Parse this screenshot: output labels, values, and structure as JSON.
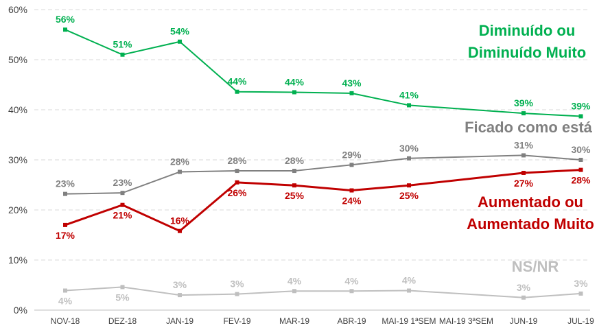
{
  "chart_data": {
    "type": "line",
    "categories": [
      "NOV-18",
      "DEZ-18",
      "JAN-19",
      "FEV-19",
      "MAR-19",
      "ABR-19",
      "MAI-19 1ªSEM",
      "MAI-19 3ªSEM",
      "JUN-19",
      "JUL-19"
    ],
    "ylim": [
      0,
      60
    ],
    "y_ticks": [
      "0%",
      "10%",
      "20%",
      "30%",
      "40%",
      "50%",
      "60%"
    ],
    "grid": true,
    "series": [
      {
        "key": "diminuido",
        "name": "Diminuído ou Diminuído Muito",
        "label_lines": [
          "Diminuído ou",
          "Diminuído Muito"
        ],
        "color": "#00b050",
        "values": [
          56,
          51,
          53.6,
          43.6,
          43.5,
          43.3,
          40.9,
          null,
          39.3,
          38.7
        ],
        "labels": [
          "56%",
          "51%",
          "54%",
          "44%",
          "44%",
          "43%",
          "41%",
          null,
          "39%",
          "39%"
        ]
      },
      {
        "key": "ficado",
        "name": "Ficado como está",
        "label_lines": [
          "Ficado como está"
        ],
        "color": "#808080",
        "values": [
          23.2,
          23.4,
          27.6,
          27.8,
          27.8,
          29,
          30.3,
          null,
          30.9,
          30
        ],
        "labels": [
          "23%",
          "23%",
          "28%",
          "28%",
          "28%",
          "29%",
          "30%",
          null,
          "31%",
          "30%"
        ]
      },
      {
        "key": "aumentado",
        "name": "Aumentado ou Aumentado Muito",
        "label_lines": [
          "Aumentado ou",
          "Aumentado Muito"
        ],
        "color": "#c00000",
        "values": [
          17,
          21,
          15.8,
          25.5,
          24.9,
          23.9,
          24.9,
          null,
          27.4,
          28
        ],
        "labels": [
          "17%",
          "21%",
          "16%",
          "26%",
          "25%",
          "24%",
          "25%",
          null,
          "27%",
          "28%"
        ]
      },
      {
        "key": "nsnr",
        "name": "NS/NR",
        "label_lines": [
          "NS/NR"
        ],
        "color": "#bfbfbf",
        "values": [
          3.9,
          4.6,
          3,
          3.2,
          3.8,
          3.8,
          3.9,
          null,
          2.5,
          3.3
        ],
        "labels": [
          "4%",
          "5%",
          "3%",
          "3%",
          "4%",
          "4%",
          "4%",
          null,
          "3%",
          "3%"
        ]
      }
    ]
  }
}
